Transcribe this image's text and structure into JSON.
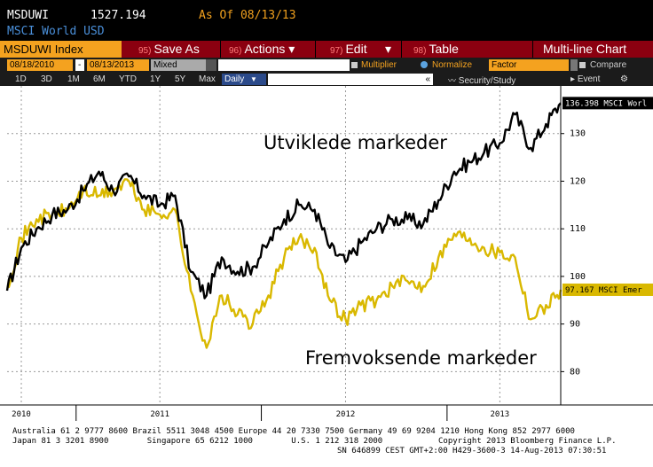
{
  "header": {
    "ticker": "MSDUWI",
    "last_price": "1527.194",
    "as_of": "As Of 08/13/13",
    "security_name": "MSCI World USD"
  },
  "menu": {
    "index_label": "MSDUWI Index",
    "items": [
      {
        "num": "95)",
        "label": "Save As"
      },
      {
        "num": "96)",
        "label": "Actions ▾"
      },
      {
        "num": "97)",
        "label": "Edit"
      },
      {
        "num": "98)",
        "label": "Table"
      }
    ],
    "edit_dropdown": "▾",
    "chart_type": "Multi-line Chart"
  },
  "range": {
    "start_date": "08/18/2010",
    "end_date": "08/13/2013",
    "separator": "-",
    "mode": "Mixed",
    "multiplier_label": "Multiplier",
    "normalize_label": "Normalize",
    "factor_label": "Factor",
    "compare_label": "Compare"
  },
  "toolbar": {
    "periods": [
      "1D",
      "3D",
      "1M",
      "6M",
      "YTD",
      "1Y",
      "5Y",
      "Max"
    ],
    "frequency": "Daily",
    "frequency_arrow": "▼",
    "collapse": "«",
    "security_study": "Security/Study",
    "event": "Event",
    "settings_icon": "gear-icon"
  },
  "chart_data": {
    "type": "line",
    "ylim": [
      73,
      140
    ],
    "y_ticks": [
      80,
      90,
      100,
      110,
      120,
      130
    ],
    "x_ticks": [
      {
        "date": "2010-09",
        "label": "2010"
      },
      {
        "date": "2011-06",
        "label": "2011"
      },
      {
        "date": "2012-06",
        "label": "2012"
      },
      {
        "date": "2013-04",
        "label": "2013"
      }
    ],
    "x_start": "2010-08-18",
    "x_end": "2013-08-13",
    "annotations": [
      "Utviklede markeder",
      "Fremvoksende markeder"
    ],
    "series": [
      {
        "name": "MSCI Worl",
        "last_value_label": "136.398 MSCI Worl",
        "color": "#000000",
        "x": [
          "2010-08-18",
          "2010-09-15",
          "2010-10-15",
          "2010-11-15",
          "2010-12-15",
          "2011-01-15",
          "2011-02-15",
          "2011-03-15",
          "2011-04-15",
          "2011-05-15",
          "2011-06-15",
          "2011-07-15",
          "2011-08-15",
          "2011-09-15",
          "2011-10-15",
          "2011-11-15",
          "2011-12-15",
          "2012-01-15",
          "2012-02-15",
          "2012-03-15",
          "2012-04-15",
          "2012-05-15",
          "2012-06-15",
          "2012-07-15",
          "2012-08-15",
          "2012-09-15",
          "2012-10-15",
          "2012-11-15",
          "2012-12-15",
          "2013-01-15",
          "2013-02-15",
          "2013-03-15",
          "2013-04-15",
          "2013-05-15",
          "2013-06-15",
          "2013-07-15",
          "2013-08-13"
        ],
        "values": [
          97,
          106,
          110,
          113,
          114,
          118,
          122,
          118,
          121,
          117,
          115,
          117,
          101,
          96,
          104,
          101,
          102,
          107,
          112,
          115,
          114,
          106,
          103,
          107,
          110,
          112,
          112,
          111,
          116,
          122,
          124,
          126,
          128,
          134,
          127,
          132,
          136.4
        ]
      },
      {
        "name": "MSCI Emer",
        "last_value_label": "97.167 MSCI Emer",
        "color": "#d9b800",
        "x": [
          "2010-08-18",
          "2010-09-15",
          "2010-10-15",
          "2010-11-15",
          "2010-12-15",
          "2011-01-15",
          "2011-02-15",
          "2011-03-15",
          "2011-04-15",
          "2011-05-15",
          "2011-06-15",
          "2011-07-15",
          "2011-08-15",
          "2011-09-15",
          "2011-10-15",
          "2011-11-15",
          "2011-12-15",
          "2012-01-15",
          "2012-02-15",
          "2012-03-15",
          "2012-04-15",
          "2012-05-15",
          "2012-06-15",
          "2012-07-15",
          "2012-08-15",
          "2012-09-15",
          "2012-10-15",
          "2012-11-15",
          "2012-12-15",
          "2013-01-15",
          "2013-02-15",
          "2013-03-15",
          "2013-04-15",
          "2013-05-15",
          "2013-06-15",
          "2013-07-15",
          "2013-08-13"
        ],
        "values": [
          98,
          108,
          112,
          113,
          114,
          118,
          117,
          118,
          120,
          114,
          113,
          114,
          97,
          85,
          96,
          92,
          90,
          96,
          104,
          108,
          106,
          95,
          91,
          94,
          95,
          98,
          99,
          98,
          104,
          109,
          108,
          106,
          105,
          104,
          91,
          94,
          97.2
        ]
      }
    ]
  },
  "footer": {
    "line1": "Australia 61 2 9777 8600 Brazil 5511 3048 4500 Europe 44 20 7330 7500 Germany 49 69 9204 1210 Hong Kong 852 2977 6000",
    "line2a": "Japan 81 3 3201 8900        Singapore 65 6212 1000        U.S. 1 212 318 2000",
    "line2b": "Copyright 2013 Bloomberg Finance L.P.",
    "line3": "SN 646899 CEST GMT+2:00 H429-3600-3 14-Aug-2013 07:30:51"
  },
  "colors": {
    "bloomberg_orange": "#f4a21f",
    "menu_red": "#8b0010",
    "world_line": "#000000",
    "emerging_line": "#d9b800"
  }
}
